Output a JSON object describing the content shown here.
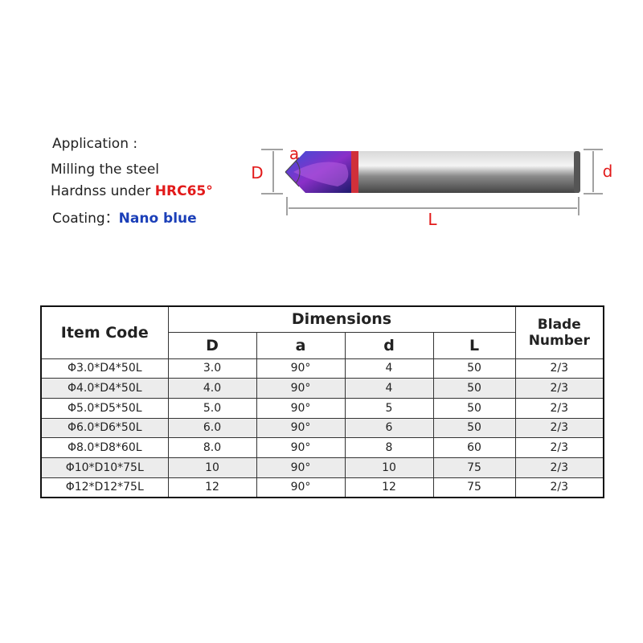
{
  "info": {
    "heading": "Application :",
    "line1": "Milling the steel",
    "line2_prefix": "Hardnss under ",
    "line2_highlight": "HRC65°",
    "coating_prefix": "Coating：",
    "coating_value": "Nano blue"
  },
  "diagram": {
    "label_D": "D",
    "label_a": "a",
    "label_d": "d",
    "label_L": "L"
  },
  "table": {
    "header": {
      "item_code": "Item Code",
      "dimensions": "Dimensions",
      "blade": "Blade Number",
      "columns": [
        "D",
        "a",
        "d",
        "L"
      ]
    },
    "rows": [
      [
        "Φ3.0*D4*50L",
        "3.0",
        "90°",
        "4",
        "50",
        "2/3"
      ],
      [
        "Φ4.0*D4*50L",
        "4.0",
        "90°",
        "4",
        "50",
        "2/3"
      ],
      [
        "Φ5.0*D5*50L",
        "5.0",
        "90°",
        "5",
        "50",
        "2/3"
      ],
      [
        "Φ6.0*D6*50L",
        "6.0",
        "90°",
        "6",
        "50",
        "2/3"
      ],
      [
        "Φ8.0*D8*60L",
        "8.0",
        "90°",
        "8",
        "60",
        "2/3"
      ],
      [
        "Φ10*D10*75L",
        "10",
        "90°",
        "10",
        "75",
        "2/3"
      ],
      [
        "Φ12*D12*75L",
        "12",
        "90°",
        "12",
        "75",
        "2/3"
      ]
    ]
  }
}
